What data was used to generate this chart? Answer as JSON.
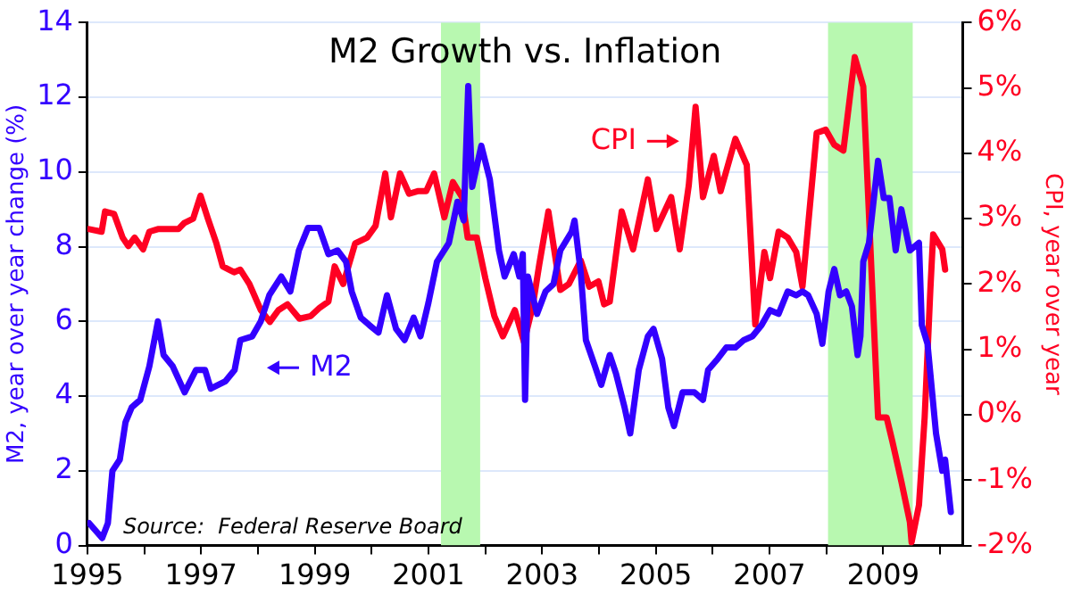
{
  "chart_data": {
    "type": "line",
    "title": "M2 Growth vs. Inflation",
    "ylabel": "M2, year over year change (%)",
    "y2label": "CPI, year over year",
    "annotations": [
      "Source:  Federal Reserve Board"
    ],
    "xlim": [
      1995,
      2010.4
    ],
    "xticks": [
      1995,
      {
        "value": 1996,
        "label": null
      },
      1997,
      {
        "value": 1998,
        "label": null
      },
      1999,
      {
        "value": 2000,
        "label": null
      },
      2001,
      {
        "value": 2002,
        "label": null
      },
      2003,
      {
        "value": 2004,
        "label": null
      },
      2005,
      {
        "value": 2006,
        "label": null
      },
      2007,
      {
        "value": 2008,
        "label": null
      },
      2009,
      {
        "value": 2010,
        "label": null
      }
    ],
    "ylim": [
      0,
      14
    ],
    "yticks": [
      0,
      2,
      4,
      6,
      8,
      10,
      12,
      14
    ],
    "y2lim": [
      -2,
      6
    ],
    "y2ticks": [
      {
        "value": -2,
        "label": "-2%"
      },
      {
        "value": -1,
        "label": "-1%"
      },
      {
        "value": 0,
        "label": "0%"
      },
      {
        "value": 1,
        "label": "1%"
      },
      {
        "value": 2,
        "label": "2%"
      },
      {
        "value": 3,
        "label": "3%"
      },
      {
        "value": 4,
        "label": "4%"
      },
      {
        "value": 5,
        "label": "5%"
      },
      {
        "value": 6,
        "label": "6%"
      }
    ],
    "grid": "y",
    "marker": "none",
    "line_style": "solid",
    "bands": [
      {
        "axis": "x",
        "from": 2001.22,
        "to": 2001.91,
        "color": "#b8f8b0"
      },
      {
        "axis": "x",
        "from": 2008.03,
        "to": 2009.52,
        "color": "#b8f8b0"
      }
    ],
    "series": [
      {
        "name": "M2",
        "color": "#3300ff",
        "x": [
          1995.03,
          1995.26,
          1995.36,
          1995.44,
          1995.57,
          1995.67,
          1995.78,
          1995.93,
          1996.09,
          1996.24,
          1996.34,
          1996.5,
          1996.71,
          1996.91,
          1997.07,
          1997.17,
          1997.43,
          1997.59,
          1997.69,
          1997.9,
          1998.05,
          1998.2,
          1998.41,
          1998.57,
          1998.72,
          1998.88,
          1999.08,
          1999.24,
          1999.4,
          1999.55,
          1999.65,
          1999.81,
          1999.96,
          2000.12,
          2000.27,
          2000.43,
          2000.58,
          2000.74,
          2000.86,
          2001.0,
          2001.15,
          2001.36,
          2001.51,
          2001.62,
          2001.7,
          2001.77,
          2001.93,
          2002.08,
          2002.24,
          2002.34,
          2002.5,
          2002.6,
          2002.66,
          2002.7,
          2002.75,
          2002.91,
          2003.06,
          2003.2,
          2003.32,
          2003.52,
          2003.57,
          2003.68,
          2003.77,
          2003.93,
          2004.04,
          2004.19,
          2004.3,
          2004.45,
          2004.55,
          2004.7,
          2004.86,
          2004.96,
          2005.11,
          2005.22,
          2005.32,
          2005.47,
          2005.68,
          2005.83,
          2005.92,
          2006.09,
          2006.24,
          2006.4,
          2006.55,
          2006.7,
          2006.86,
          2007.01,
          2007.16,
          2007.32,
          2007.47,
          2007.58,
          2007.68,
          2007.83,
          2007.93,
          2008.04,
          2008.14,
          2008.24,
          2008.35,
          2008.45,
          2008.55,
          2008.6,
          2008.65,
          2008.75,
          2008.91,
          2009.01,
          2009.11,
          2009.22,
          2009.32,
          2009.47,
          2009.63,
          2009.68,
          2009.78,
          2009.93,
          2010.04,
          2010.09,
          2010.19
        ],
        "values": [
          0.6,
          0.2,
          0.6,
          2.0,
          2.3,
          3.3,
          3.7,
          3.9,
          4.8,
          6.0,
          5.1,
          4.8,
          4.1,
          4.7,
          4.7,
          4.2,
          4.4,
          4.7,
          5.5,
          5.6,
          6.0,
          6.7,
          7.2,
          6.8,
          7.9,
          8.5,
          8.5,
          7.8,
          7.9,
          7.6,
          6.8,
          6.1,
          5.9,
          5.7,
          6.7,
          5.8,
          5.5,
          6.1,
          5.6,
          6.5,
          7.6,
          8.1,
          9.2,
          8.7,
          12.3,
          9.6,
          10.7,
          9.8,
          7.9,
          7.2,
          7.8,
          7.2,
          7.8,
          3.9,
          7.2,
          6.2,
          6.8,
          7.0,
          7.9,
          8.4,
          8.7,
          7.3,
          5.5,
          4.8,
          4.3,
          5.1,
          4.6,
          3.7,
          3.0,
          4.7,
          5.6,
          5.8,
          5.0,
          3.7,
          3.2,
          4.1,
          4.1,
          3.9,
          4.7,
          5.0,
          5.3,
          5.3,
          5.5,
          5.6,
          5.9,
          6.3,
          6.2,
          6.8,
          6.7,
          6.8,
          6.7,
          6.2,
          5.4,
          6.8,
          7.4,
          6.7,
          6.8,
          6.4,
          5.1,
          5.6,
          7.6,
          8.1,
          10.3,
          9.3,
          9.3,
          7.9,
          9.0,
          7.9,
          8.1,
          5.9,
          5.4,
          3.0,
          2.0,
          2.3,
          0.9
        ]
      },
      {
        "name": "CPI",
        "color": "#ff0022",
        "axis": "y2",
        "x": [
          1995.03,
          1995.25,
          1995.31,
          1995.47,
          1995.62,
          1995.72,
          1995.83,
          1995.98,
          1996.09,
          1996.24,
          1996.4,
          1996.6,
          1996.7,
          1996.86,
          1996.99,
          1997.12,
          1997.27,
          1997.38,
          1997.58,
          1997.69,
          1997.85,
          1998.05,
          1998.21,
          1998.36,
          1998.52,
          1998.73,
          1998.93,
          1999.09,
          1999.24,
          1999.35,
          1999.5,
          1999.71,
          1999.92,
          2000.07,
          2000.24,
          2000.34,
          2000.5,
          2000.66,
          2000.81,
          2000.96,
          2001.1,
          2001.28,
          2001.43,
          2001.59,
          2001.69,
          2001.85,
          2002.0,
          2002.16,
          2002.31,
          2002.52,
          2002.68,
          2002.83,
          2002.95,
          2003.11,
          2003.32,
          2003.47,
          2003.68,
          2003.83,
          2003.99,
          2004.09,
          2004.19,
          2004.4,
          2004.6,
          2004.86,
          2005.01,
          2005.27,
          2005.42,
          2005.58,
          2005.7,
          2005.83,
          2006.02,
          2006.14,
          2006.4,
          2006.6,
          2006.75,
          2006.91,
          2007.01,
          2007.16,
          2007.32,
          2007.47,
          2007.58,
          2007.83,
          2007.99,
          2008.14,
          2008.3,
          2008.5,
          2008.65,
          2008.8,
          2008.91,
          2009.06,
          2009.16,
          2009.32,
          2009.47,
          2009.5,
          2009.63,
          2009.73,
          2009.83,
          2009.88,
          2010.04,
          2010.09
        ],
        "values": [
          2.84,
          2.8,
          3.11,
          3.07,
          2.71,
          2.58,
          2.71,
          2.53,
          2.8,
          2.84,
          2.84,
          2.84,
          2.93,
          3.0,
          3.35,
          3.0,
          2.62,
          2.27,
          2.18,
          2.22,
          2.0,
          1.6,
          1.42,
          1.6,
          1.69,
          1.47,
          1.51,
          1.64,
          1.73,
          2.27,
          2.0,
          2.62,
          2.71,
          2.89,
          3.69,
          3.02,
          3.69,
          3.38,
          3.42,
          3.42,
          3.69,
          3.02,
          3.56,
          3.33,
          2.71,
          2.71,
          2.09,
          1.51,
          1.2,
          1.6,
          1.11,
          1.64,
          2.3,
          3.11,
          1.91,
          2.0,
          2.36,
          1.96,
          2.04,
          1.69,
          1.73,
          3.11,
          2.53,
          3.6,
          2.84,
          3.33,
          2.53,
          3.51,
          4.71,
          3.33,
          3.96,
          3.42,
          4.22,
          3.82,
          1.38,
          2.49,
          2.09,
          2.8,
          2.71,
          2.49,
          1.96,
          4.31,
          4.36,
          4.13,
          4.04,
          5.47,
          5.02,
          2.09,
          -0.04,
          -0.04,
          -0.4,
          -1.02,
          -1.64,
          -1.95,
          -1.38,
          -0.04,
          1.91,
          2.76,
          2.53,
          2.22
        ]
      }
    ]
  }
}
